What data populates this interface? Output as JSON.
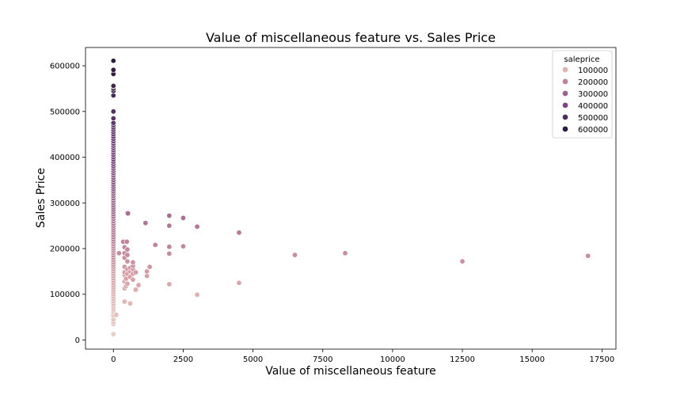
{
  "chart_data": {
    "type": "scatter",
    "title": "Value of miscellaneous feature vs. Sales Price",
    "xlabel": "Value of miscellaneous feature",
    "ylabel": "Sales Price",
    "xlim": [
      -1000,
      18000
    ],
    "ylim": [
      -20000,
      640000
    ],
    "xticks": [
      0,
      2500,
      5000,
      7500,
      10000,
      12500,
      15000,
      17500
    ],
    "xtick_labels": [
      "0",
      "2500",
      "5000",
      "7500",
      "10000",
      "12500",
      "15000",
      "17500"
    ],
    "yticks": [
      0,
      100000,
      200000,
      300000,
      400000,
      500000,
      600000
    ],
    "ytick_labels": [
      "0",
      "100000",
      "200000",
      "300000",
      "400000",
      "500000",
      "600000"
    ],
    "grid": false,
    "hue": "saleprice",
    "legend": {
      "title": "saleprice",
      "placement": "top-right",
      "entries": [
        {
          "label": "100000",
          "color": "#e2b4b0"
        },
        {
          "label": "200000",
          "color": "#c2819a"
        },
        {
          "label": "300000",
          "color": "#9d5f8e"
        },
        {
          "label": "400000",
          "color": "#7a4384"
        },
        {
          "label": "500000",
          "color": "#522d64"
        },
        {
          "label": "600000",
          "color": "#2a1a3d"
        }
      ]
    },
    "points": [
      {
        "x": 0,
        "y": 12789
      },
      {
        "x": 0,
        "y": 34900
      },
      {
        "x": 0,
        "y": 39300
      },
      {
        "x": 0,
        "y": 45000
      },
      {
        "x": 0,
        "y": 52000
      },
      {
        "x": 0,
        "y": 55000
      },
      {
        "x": 0,
        "y": 60000
      },
      {
        "x": 0,
        "y": 64500
      },
      {
        "x": 0,
        "y": 68000
      },
      {
        "x": 0,
        "y": 72000
      },
      {
        "x": 0,
        "y": 76000
      },
      {
        "x": 0,
        "y": 80000
      },
      {
        "x": 0,
        "y": 85000
      },
      {
        "x": 0,
        "y": 90000
      },
      {
        "x": 0,
        "y": 95000
      },
      {
        "x": 0,
        "y": 100000
      },
      {
        "x": 0,
        "y": 105000
      },
      {
        "x": 0,
        "y": 110000
      },
      {
        "x": 0,
        "y": 115000
      },
      {
        "x": 0,
        "y": 120000
      },
      {
        "x": 0,
        "y": 125000
      },
      {
        "x": 0,
        "y": 130000
      },
      {
        "x": 0,
        "y": 135000
      },
      {
        "x": 0,
        "y": 140000
      },
      {
        "x": 0,
        "y": 145000
      },
      {
        "x": 0,
        "y": 150000
      },
      {
        "x": 0,
        "y": 155000
      },
      {
        "x": 0,
        "y": 160000
      },
      {
        "x": 0,
        "y": 165000
      },
      {
        "x": 0,
        "y": 170000
      },
      {
        "x": 0,
        "y": 175000
      },
      {
        "x": 0,
        "y": 180000
      },
      {
        "x": 0,
        "y": 185000
      },
      {
        "x": 0,
        "y": 190000
      },
      {
        "x": 0,
        "y": 195000
      },
      {
        "x": 0,
        "y": 200000
      },
      {
        "x": 0,
        "y": 205000
      },
      {
        "x": 0,
        "y": 210000
      },
      {
        "x": 0,
        "y": 215000
      },
      {
        "x": 0,
        "y": 220000
      },
      {
        "x": 0,
        "y": 225000
      },
      {
        "x": 0,
        "y": 230000
      },
      {
        "x": 0,
        "y": 235000
      },
      {
        "x": 0,
        "y": 240000
      },
      {
        "x": 0,
        "y": 245000
      },
      {
        "x": 0,
        "y": 250000
      },
      {
        "x": 0,
        "y": 255000
      },
      {
        "x": 0,
        "y": 260000
      },
      {
        "x": 0,
        "y": 265000
      },
      {
        "x": 0,
        "y": 270000
      },
      {
        "x": 0,
        "y": 275000
      },
      {
        "x": 0,
        "y": 280000
      },
      {
        "x": 0,
        "y": 285000
      },
      {
        "x": 0,
        "y": 290000
      },
      {
        "x": 0,
        "y": 295000
      },
      {
        "x": 0,
        "y": 300000
      },
      {
        "x": 0,
        "y": 305000
      },
      {
        "x": 0,
        "y": 310000
      },
      {
        "x": 0,
        "y": 315000
      },
      {
        "x": 0,
        "y": 320000
      },
      {
        "x": 0,
        "y": 325000
      },
      {
        "x": 0,
        "y": 330000
      },
      {
        "x": 0,
        "y": 335000
      },
      {
        "x": 0,
        "y": 340000
      },
      {
        "x": 0,
        "y": 345000
      },
      {
        "x": 0,
        "y": 350000
      },
      {
        "x": 0,
        "y": 355000
      },
      {
        "x": 0,
        "y": 360000
      },
      {
        "x": 0,
        "y": 365000
      },
      {
        "x": 0,
        "y": 370000
      },
      {
        "x": 0,
        "y": 375000
      },
      {
        "x": 0,
        "y": 380000
      },
      {
        "x": 0,
        "y": 385000
      },
      {
        "x": 0,
        "y": 390000
      },
      {
        "x": 0,
        "y": 395000
      },
      {
        "x": 0,
        "y": 400000
      },
      {
        "x": 0,
        "y": 405000
      },
      {
        "x": 0,
        "y": 410000
      },
      {
        "x": 0,
        "y": 415000
      },
      {
        "x": 0,
        "y": 420000
      },
      {
        "x": 0,
        "y": 425000
      },
      {
        "x": 0,
        "y": 430000
      },
      {
        "x": 0,
        "y": 435000
      },
      {
        "x": 0,
        "y": 440000
      },
      {
        "x": 0,
        "y": 445000
      },
      {
        "x": 0,
        "y": 450000
      },
      {
        "x": 0,
        "y": 455000
      },
      {
        "x": 0,
        "y": 460000
      },
      {
        "x": 0,
        "y": 465000
      },
      {
        "x": 0,
        "y": 470000
      },
      {
        "x": 0,
        "y": 475000
      },
      {
        "x": 0,
        "y": 485000
      },
      {
        "x": 0,
        "y": 500000
      },
      {
        "x": 0,
        "y": 535000
      },
      {
        "x": 0,
        "y": 545000
      },
      {
        "x": 0,
        "y": 550000
      },
      {
        "x": 0,
        "y": 555000
      },
      {
        "x": 0,
        "y": 556000
      },
      {
        "x": 0,
        "y": 582000
      },
      {
        "x": 0,
        "y": 591000
      },
      {
        "x": 0,
        "y": 611000
      },
      {
        "x": 100,
        "y": 55000
      },
      {
        "x": 200,
        "y": 190000
      },
      {
        "x": 350,
        "y": 215000
      },
      {
        "x": 400,
        "y": 84000
      },
      {
        "x": 400,
        "y": 113000
      },
      {
        "x": 400,
        "y": 128000
      },
      {
        "x": 400,
        "y": 142000
      },
      {
        "x": 400,
        "y": 148000
      },
      {
        "x": 400,
        "y": 160000
      },
      {
        "x": 400,
        "y": 180000
      },
      {
        "x": 400,
        "y": 190000
      },
      {
        "x": 400,
        "y": 203000
      },
      {
        "x": 450,
        "y": 118000
      },
      {
        "x": 450,
        "y": 134000
      },
      {
        "x": 480,
        "y": 215000
      },
      {
        "x": 500,
        "y": 123000
      },
      {
        "x": 500,
        "y": 145000
      },
      {
        "x": 500,
        "y": 155000
      },
      {
        "x": 500,
        "y": 172000
      },
      {
        "x": 500,
        "y": 186000
      },
      {
        "x": 500,
        "y": 198000
      },
      {
        "x": 500,
        "y": 278000
      },
      {
        "x": 520,
        "y": 277000
      },
      {
        "x": 600,
        "y": 80000
      },
      {
        "x": 600,
        "y": 138000
      },
      {
        "x": 600,
        "y": 150000
      },
      {
        "x": 600,
        "y": 158000
      },
      {
        "x": 700,
        "y": 132000
      },
      {
        "x": 700,
        "y": 145000
      },
      {
        "x": 700,
        "y": 155000
      },
      {
        "x": 700,
        "y": 162000
      },
      {
        "x": 700,
        "y": 170000
      },
      {
        "x": 800,
        "y": 110000
      },
      {
        "x": 800,
        "y": 148000
      },
      {
        "x": 900,
        "y": 120000
      },
      {
        "x": 1150,
        "y": 256000
      },
      {
        "x": 1200,
        "y": 140000
      },
      {
        "x": 1200,
        "y": 150000
      },
      {
        "x": 1300,
        "y": 160000
      },
      {
        "x": 1500,
        "y": 208000
      },
      {
        "x": 2000,
        "y": 122000
      },
      {
        "x": 2000,
        "y": 189000
      },
      {
        "x": 2000,
        "y": 204000
      },
      {
        "x": 2000,
        "y": 250000
      },
      {
        "x": 2000,
        "y": 272000
      },
      {
        "x": 2500,
        "y": 205000
      },
      {
        "x": 2500,
        "y": 267000
      },
      {
        "x": 3000,
        "y": 99000
      },
      {
        "x": 3000,
        "y": 248000
      },
      {
        "x": 4500,
        "y": 125000
      },
      {
        "x": 4500,
        "y": 235000
      },
      {
        "x": 6500,
        "y": 186000
      },
      {
        "x": 8300,
        "y": 190000
      },
      {
        "x": 12500,
        "y": 172000
      },
      {
        "x": 17000,
        "y": 184000
      }
    ]
  }
}
